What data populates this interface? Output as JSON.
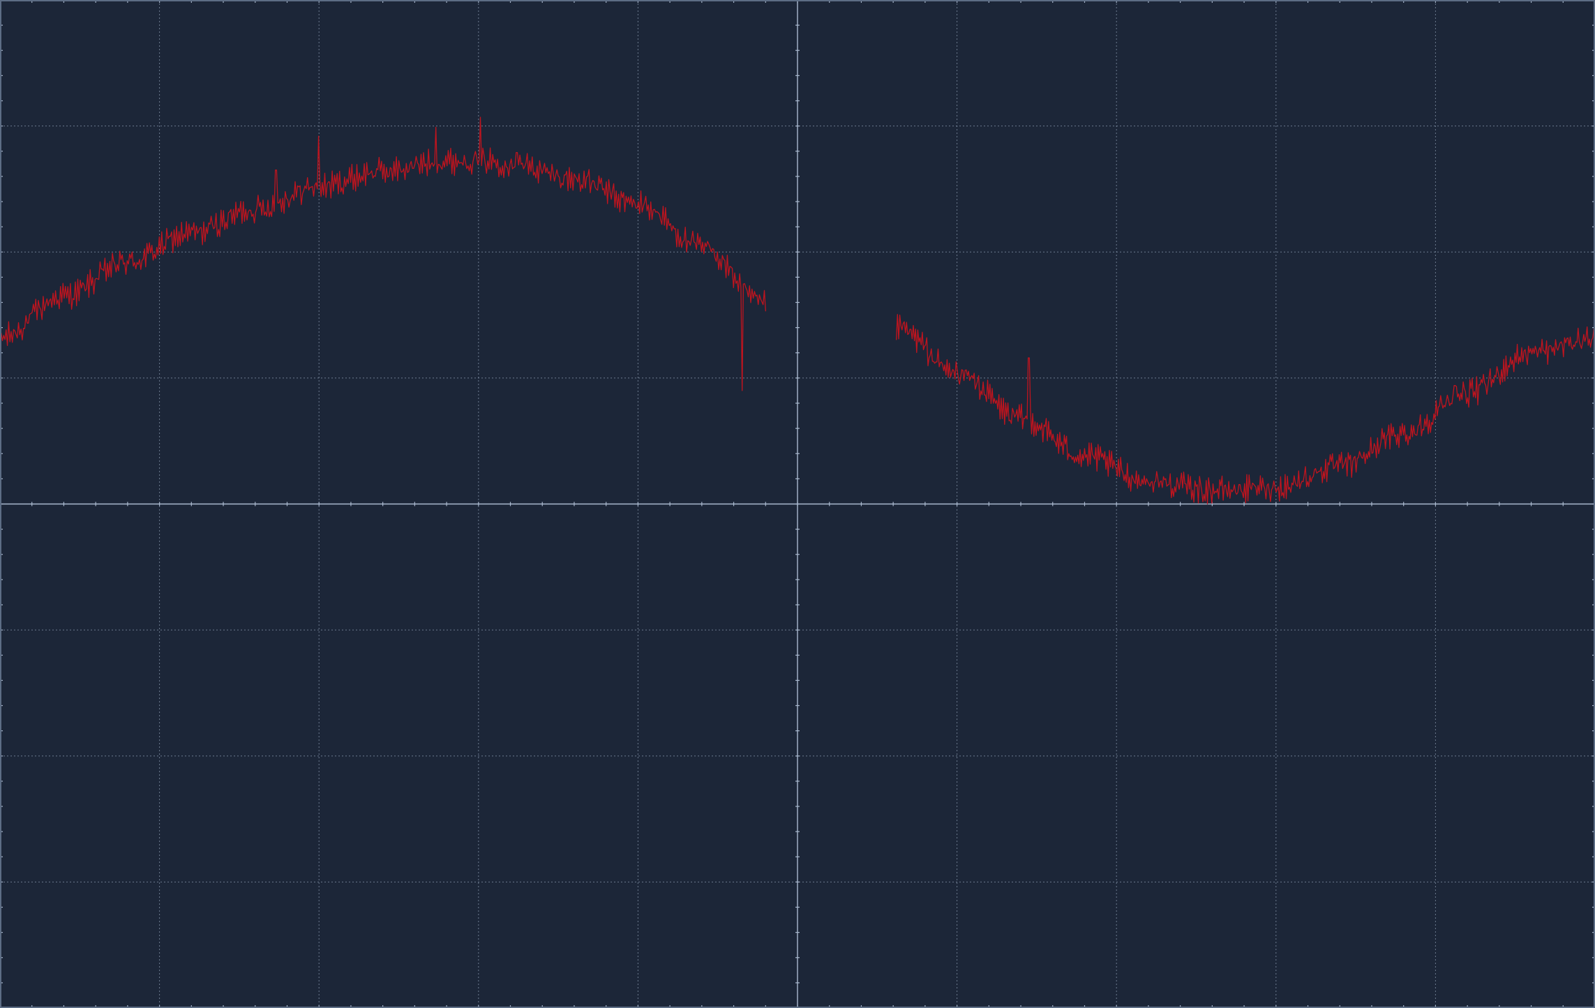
{
  "chart_data": {
    "type": "line",
    "title": "",
    "xlabel": "",
    "ylabel": "",
    "xlim": [
      -5,
      5
    ],
    "ylim": [
      -4,
      4
    ],
    "grid": true,
    "grid_divisions": {
      "x": 10,
      "y": 8
    },
    "minor_ticks_per_division": 5,
    "background_color": "#1c2638",
    "grid_color": "#8797ad",
    "axis_color": "#aab9cf",
    "series": [
      {
        "color": "#c0141e",
        "segments": [
          {
            "x_start": -5.0,
            "x_end": -0.2,
            "points": [
              [
                -5.0,
                1.32
              ],
              [
                -4.6,
                1.65
              ],
              [
                -4.2,
                1.92
              ],
              [
                -3.8,
                2.15
              ],
              [
                -3.4,
                2.34
              ],
              [
                -3.0,
                2.52
              ],
              [
                -2.6,
                2.64
              ],
              [
                -2.2,
                2.72
              ],
              [
                -2.0,
                2.73
              ],
              [
                -1.8,
                2.7
              ],
              [
                -1.4,
                2.58
              ],
              [
                -1.0,
                2.38
              ],
              [
                -0.6,
                2.04
              ],
              [
                -0.2,
                1.58
              ]
            ],
            "spikes": [
              [
                -3.27,
                2.65
              ],
              [
                -3.0,
                2.92
              ],
              [
                -2.27,
                2.99
              ],
              [
                -1.99,
                3.07
              ],
              [
                -1.75,
                2.69
              ],
              [
                -1.78,
                2.67
              ],
              [
                -1.76,
                2.79
              ],
              [
                -0.35,
                0.9
              ]
            ]
          },
          {
            "x_start": 0.62,
            "x_end": 5.0,
            "points": [
              [
                0.62,
                1.4
              ],
              [
                1.0,
                1.04
              ],
              [
                1.4,
                0.68
              ],
              [
                1.8,
                0.38
              ],
              [
                2.2,
                0.18
              ],
              [
                2.6,
                0.11
              ],
              [
                3.0,
                0.13
              ],
              [
                3.4,
                0.3
              ],
              [
                3.8,
                0.56
              ],
              [
                4.2,
                0.88
              ],
              [
                4.6,
                1.2
              ],
              [
                5.0,
                1.32
              ]
            ],
            "spikes": [
              [
                1.45,
                1.16
              ],
              [
                2.2,
                0.16
              ],
              [
                2.44,
                0.08
              ],
              [
                2.88,
                0.07
              ],
              [
                4.12,
                0.94
              ]
            ]
          }
        ]
      }
    ]
  }
}
